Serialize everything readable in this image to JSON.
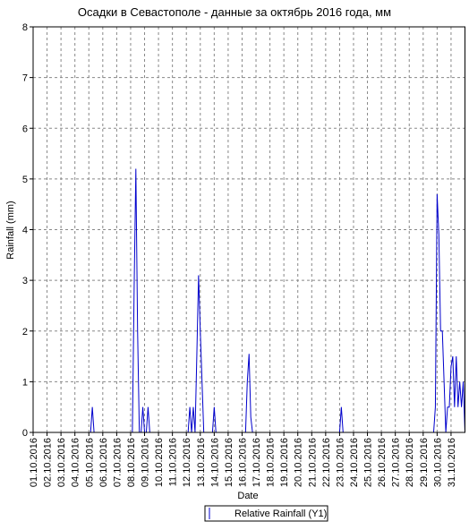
{
  "chart_data": {
    "type": "line",
    "title": "Осадки в Севастополе - данные за октябрь 2016 года, мм",
    "ylabel": "Rainfall (mm)",
    "xlabel": "Date",
    "ylim": [
      0,
      8
    ],
    "yticks": [
      0,
      1,
      2,
      3,
      4,
      5,
      6,
      7,
      8
    ],
    "xlim": [
      1,
      32
    ],
    "xticks": [
      {
        "value": 1,
        "label": "01.10.2016"
      },
      {
        "value": 2,
        "label": "02.10.2016"
      },
      {
        "value": 3,
        "label": "03.10.2016"
      },
      {
        "value": 4,
        "label": "04.10.2016"
      },
      {
        "value": 5,
        "label": "05.10.2016"
      },
      {
        "value": 6,
        "label": "06.10.2016"
      },
      {
        "value": 7,
        "label": "07.10.2016"
      },
      {
        "value": 8,
        "label": "08.10.2016"
      },
      {
        "value": 9,
        "label": "09.10.2016"
      },
      {
        "value": 10,
        "label": "10.10.2016"
      },
      {
        "value": 11,
        "label": "11.10.2016"
      },
      {
        "value": 12,
        "label": "12.10.2016"
      },
      {
        "value": 13,
        "label": "13.10.2016"
      },
      {
        "value": 14,
        "label": "14.10.2016"
      },
      {
        "value": 15,
        "label": "15.10.2016"
      },
      {
        "value": 16,
        "label": "16.10.2016"
      },
      {
        "value": 17,
        "label": "17.10.2016"
      },
      {
        "value": 18,
        "label": "18.10.2016"
      },
      {
        "value": 19,
        "label": "19.10.2016"
      },
      {
        "value": 20,
        "label": "20.10.2016"
      },
      {
        "value": 21,
        "label": "21.10.2016"
      },
      {
        "value": 22,
        "label": "22.10.2016"
      },
      {
        "value": 23,
        "label": "23.10.2016"
      },
      {
        "value": 24,
        "label": "24.10.2016"
      },
      {
        "value": 25,
        "label": "25.10.2016"
      },
      {
        "value": 26,
        "label": "26.10.2016"
      },
      {
        "value": 27,
        "label": "27.10.2016"
      },
      {
        "value": 28,
        "label": "28.10.2016"
      },
      {
        "value": 29,
        "label": "29.10.2016"
      },
      {
        "value": 30,
        "label": "30.10.2016"
      },
      {
        "value": 31,
        "label": "31.10.2016"
      }
    ],
    "grid": true,
    "x": [
      1,
      5.125,
      5.25,
      5.375,
      8.125,
      8.25,
      8.375,
      8.5,
      8.625,
      8.75,
      8.875,
      9.0,
      9.125,
      9.25,
      9.375,
      12.125,
      12.25,
      12.375,
      12.5,
      12.625,
      12.75,
      12.875,
      13.0,
      13.125,
      13.25,
      13.375,
      13.875,
      14.0,
      14.125,
      16.25,
      16.375,
      16.5,
      16.625,
      16.75,
      23.0,
      23.125,
      23.25,
      29.75,
      29.875,
      30.0,
      30.125,
      30.25,
      30.375,
      30.5,
      30.625,
      30.75,
      30.875,
      31.0,
      31.125,
      31.25,
      31.375,
      31.5,
      31.625,
      31.75,
      31.875,
      32
    ],
    "series": [
      {
        "name": "Relative Rainfall (Y1)",
        "color": "#0000cc",
        "values": [
          0,
          0,
          0.5,
          0,
          0,
          2.8,
          5.2,
          2.0,
          0,
          0,
          0.5,
          0,
          0,
          0.5,
          0,
          0,
          0.5,
          0,
          0.5,
          0,
          1.5,
          3.1,
          2.0,
          1.0,
          0,
          0,
          0,
          0.5,
          0,
          0,
          1.0,
          1.55,
          0.3,
          0,
          0,
          0.5,
          0,
          0,
          0.5,
          4.7,
          3.9,
          2.0,
          2.0,
          1.0,
          0,
          0.5,
          0.5,
          1.3,
          1.5,
          0.5,
          1.5,
          0.5,
          1.0,
          0.5,
          1.0,
          0
        ]
      }
    ]
  }
}
